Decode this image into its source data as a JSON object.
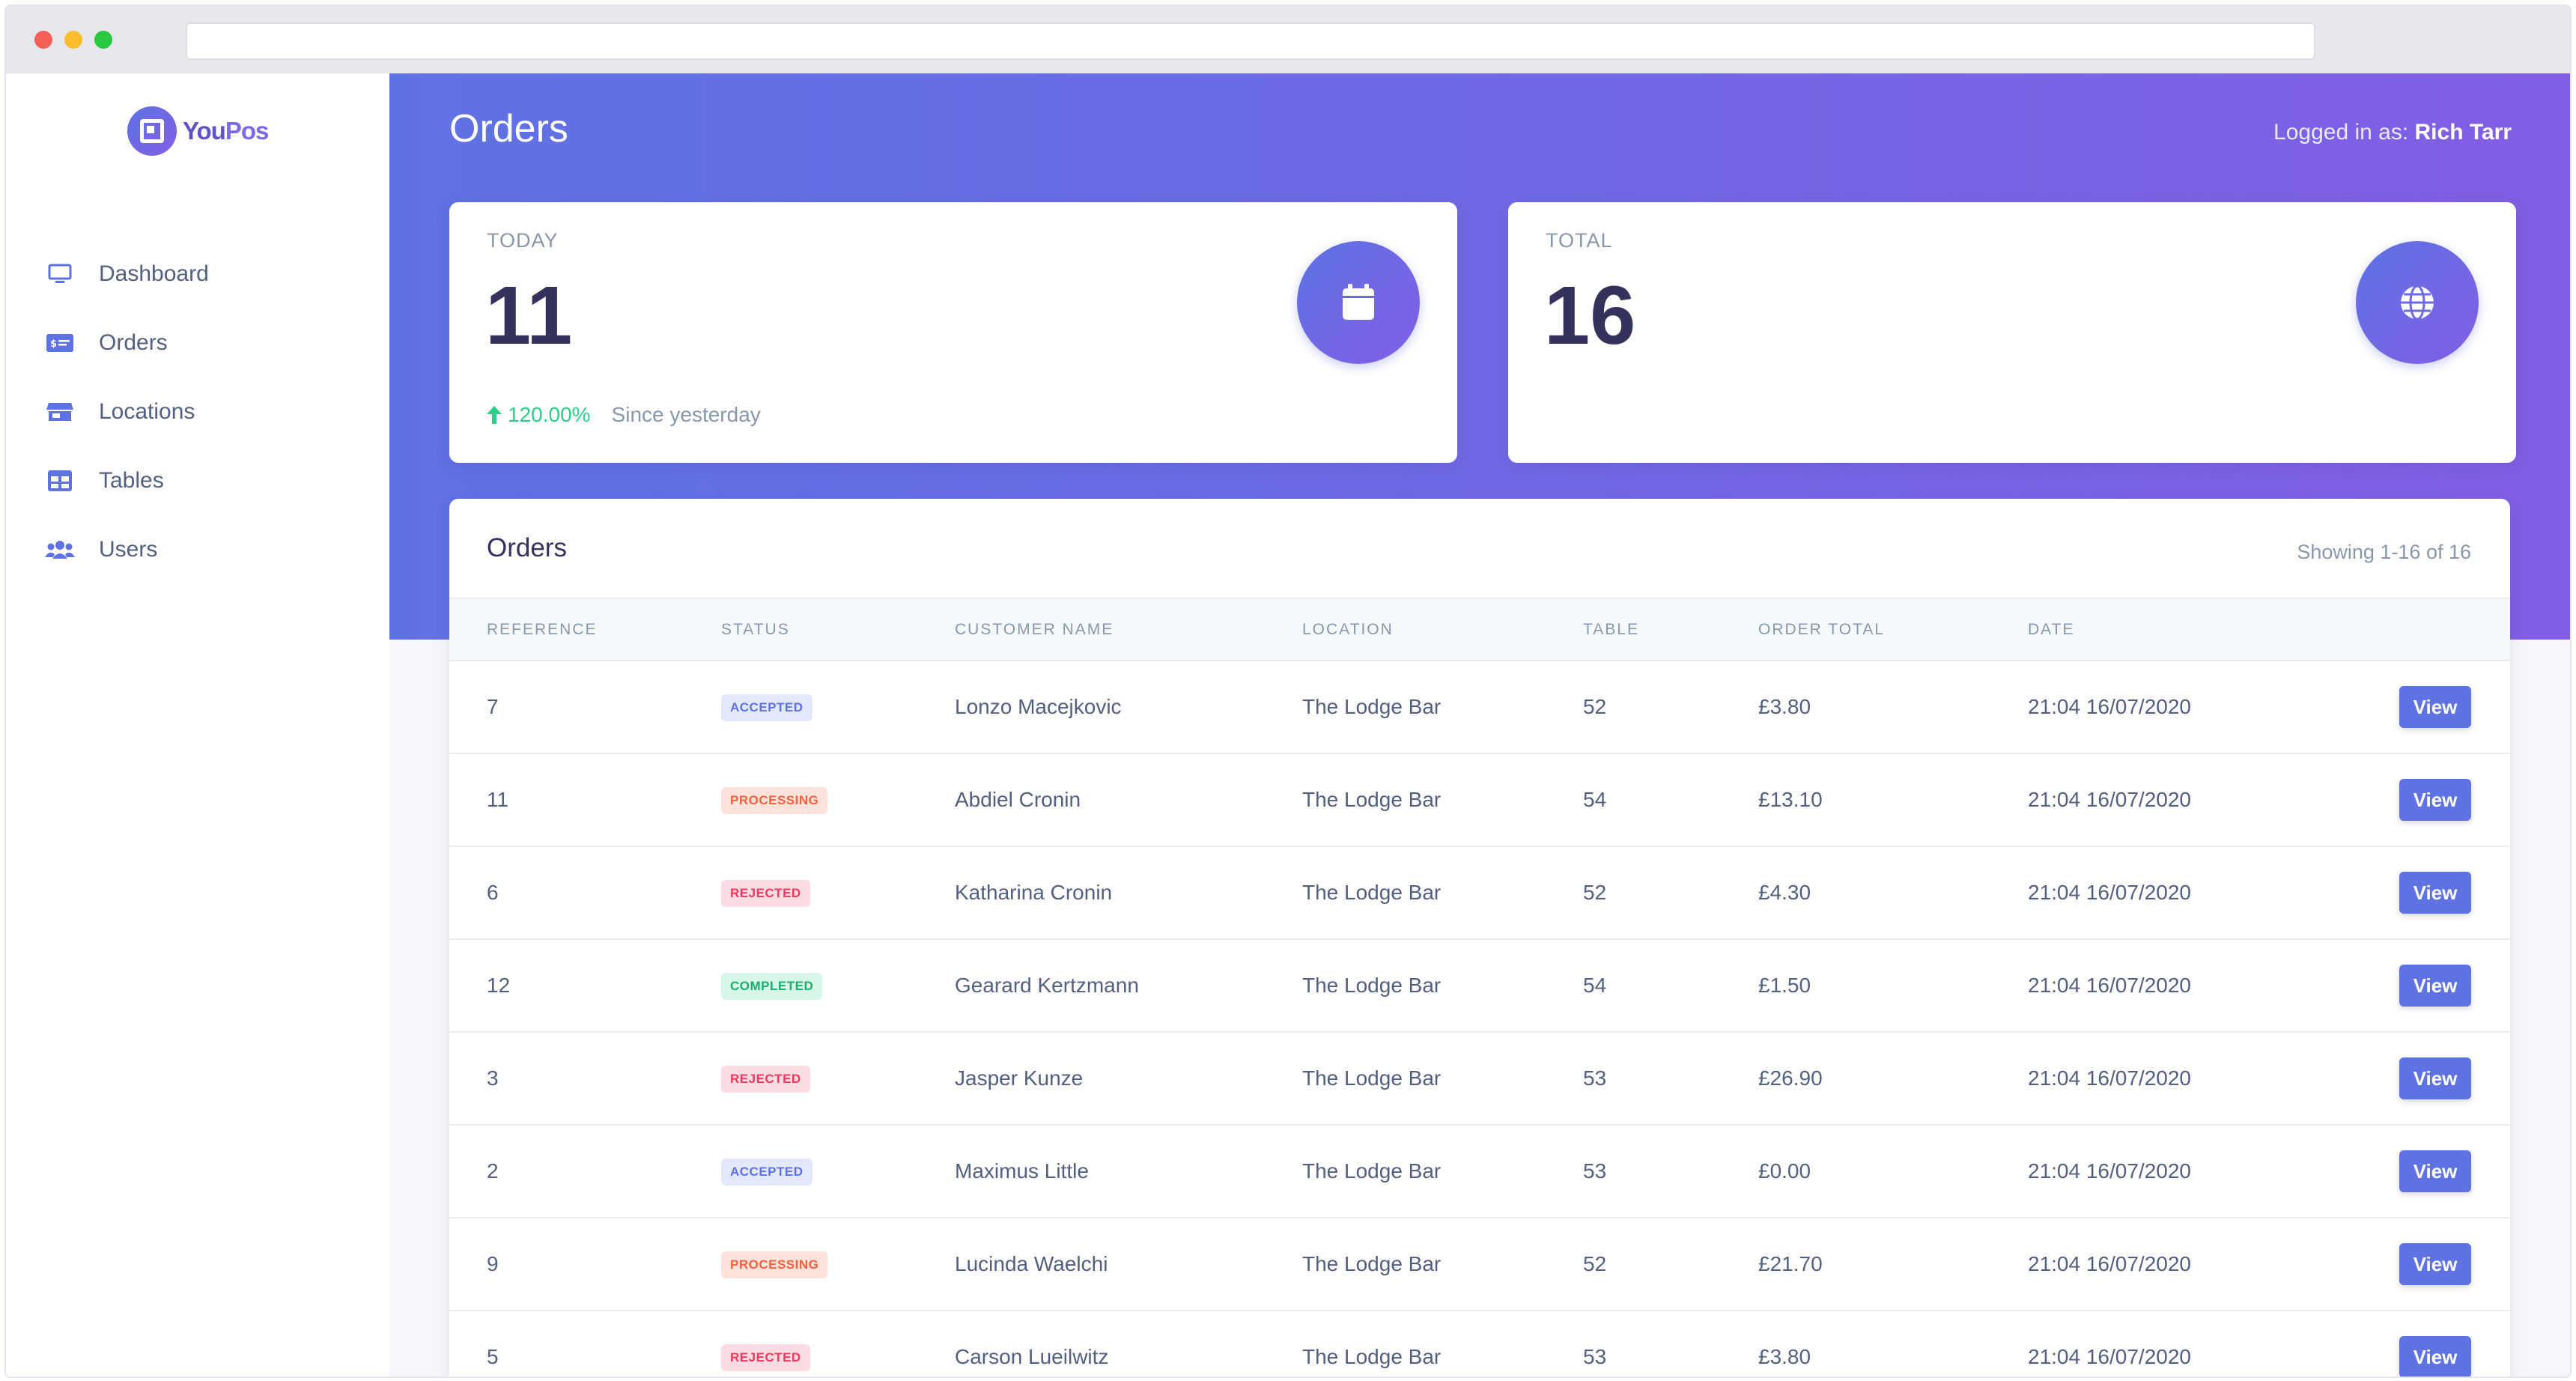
{
  "app": {
    "name_part1": "You",
    "name_part2": "Pos"
  },
  "sidebar": {
    "items": [
      {
        "label": "Dashboard",
        "icon": "monitor-icon"
      },
      {
        "label": "Orders",
        "icon": "money-bill-icon"
      },
      {
        "label": "Locations",
        "icon": "store-icon"
      },
      {
        "label": "Tables",
        "icon": "table-icon"
      },
      {
        "label": "Users",
        "icon": "users-icon"
      }
    ]
  },
  "header": {
    "title": "Orders",
    "logged_in_prefix": "Logged in as:",
    "user_name": "Rich Tarr"
  },
  "stats": {
    "today": {
      "label": "TODAY",
      "value": "11",
      "change": "120.00%",
      "since": "Since yesterday",
      "icon": "calendar-icon"
    },
    "total": {
      "label": "TOTAL",
      "value": "16",
      "icon": "globe-icon"
    }
  },
  "orders": {
    "title": "Orders",
    "showing": "Showing 1-16 of 16",
    "columns": [
      "REFERENCE",
      "STATUS",
      "CUSTOMER NAME",
      "LOCATION",
      "TABLE",
      "ORDER TOTAL",
      "DATE"
    ],
    "view_label": "View",
    "rows": [
      {
        "ref": "7",
        "status": "ACCEPTED",
        "status_key": "accepted",
        "customer": "Lonzo Macejkovic",
        "location": "The Lodge Bar",
        "table": "52",
        "total": "£3.80",
        "date": "21:04 16/07/2020"
      },
      {
        "ref": "11",
        "status": "PROCESSING",
        "status_key": "processing",
        "customer": "Abdiel Cronin",
        "location": "The Lodge Bar",
        "table": "54",
        "total": "£13.10",
        "date": "21:04 16/07/2020"
      },
      {
        "ref": "6",
        "status": "REJECTED",
        "status_key": "rejected",
        "customer": "Katharina Cronin",
        "location": "The Lodge Bar",
        "table": "52",
        "total": "£4.30",
        "date": "21:04 16/07/2020"
      },
      {
        "ref": "12",
        "status": "COMPLETED",
        "status_key": "completed",
        "customer": "Gearard Kertzmann",
        "location": "The Lodge Bar",
        "table": "54",
        "total": "£1.50",
        "date": "21:04 16/07/2020"
      },
      {
        "ref": "3",
        "status": "REJECTED",
        "status_key": "rejected",
        "customer": "Jasper Kunze",
        "location": "The Lodge Bar",
        "table": "53",
        "total": "£26.90",
        "date": "21:04 16/07/2020"
      },
      {
        "ref": "2",
        "status": "ACCEPTED",
        "status_key": "accepted",
        "customer": "Maximus Little",
        "location": "The Lodge Bar",
        "table": "53",
        "total": "£0.00",
        "date": "21:04 16/07/2020"
      },
      {
        "ref": "9",
        "status": "PROCESSING",
        "status_key": "processing",
        "customer": "Lucinda Waelchi",
        "location": "The Lodge Bar",
        "table": "52",
        "total": "£21.70",
        "date": "21:04 16/07/2020"
      },
      {
        "ref": "5",
        "status": "REJECTED",
        "status_key": "rejected",
        "customer": "Carson Lueilwitz",
        "location": "The Lodge Bar",
        "table": "53",
        "total": "£3.80",
        "date": "21:04 16/07/2020"
      }
    ]
  },
  "colors": {
    "primary": "#5e72e4",
    "accent": "#825ee4",
    "success": "#2dce89"
  }
}
